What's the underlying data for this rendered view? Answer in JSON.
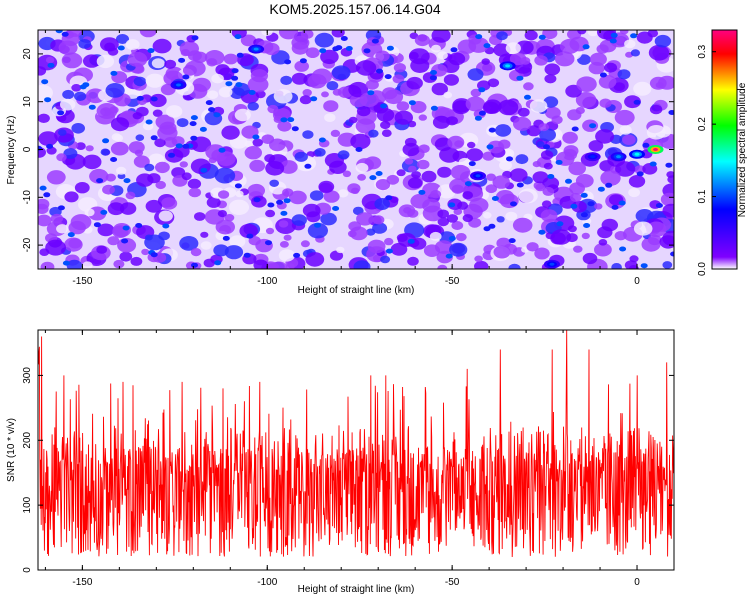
{
  "title": "KOM5.2025.157.06.14.G04",
  "chart_data": [
    {
      "type": "heatmap",
      "title": "KOM5.2025.157.06.14.G04",
      "xlabel": "Height of straight line (km)",
      "ylabel": "Frequency (Hz)",
      "xlim": [
        -162,
        10
      ],
      "ylim": [
        -25,
        25
      ],
      "xticks": [
        -150,
        -100,
        -50,
        0
      ],
      "yticks": [
        -20,
        -10,
        0,
        10,
        20
      ],
      "colorbar": {
        "label": "Normalized spectral amplitude",
        "range": [
          0.0,
          0.33
        ],
        "ticks": [
          0.0,
          0.1,
          0.2,
          0.3
        ],
        "colormap": [
          "#ffffff",
          "#7f00ff",
          "#0000ff",
          "#00ffff",
          "#00ff00",
          "#ffff00",
          "#ff0000",
          "#ff0080"
        ]
      },
      "hotspots": [
        {
          "x": 5,
          "y": 0.0,
          "value": 0.33
        },
        {
          "x": 0,
          "y": -1.0,
          "value": 0.15
        },
        {
          "x": -5,
          "y": -1.5,
          "value": 0.12
        },
        {
          "x": -12,
          "y": -1.5,
          "value": 0.09
        },
        {
          "x": -35,
          "y": 17.5,
          "value": 0.14
        },
        {
          "x": -103,
          "y": 21.0,
          "value": 0.12
        },
        {
          "x": -124,
          "y": 13.5,
          "value": 0.11
        },
        {
          "x": -23,
          "y": -24.0,
          "value": 0.1
        },
        {
          "x": -43,
          "y": -5.5,
          "value": 0.1
        }
      ]
    },
    {
      "type": "line",
      "xlabel": "Height of straight line (km)",
      "ylabel": "SNR (10 * v/v)",
      "xlim": [
        -162,
        10
      ],
      "ylim": [
        0,
        370
      ],
      "xticks": [
        -150,
        -100,
        -50,
        0
      ],
      "yticks": [
        0,
        100,
        200,
        300
      ],
      "series": [
        {
          "color": "#ff0000",
          "baseline": 110,
          "spikes": [
            {
              "x": -161,
              "y": 360
            },
            {
              "x": -155,
              "y": 300
            },
            {
              "x": -139,
              "y": 290
            },
            {
              "x": -123,
              "y": 290
            },
            {
              "x": -112,
              "y": 280
            },
            {
              "x": -102,
              "y": 290
            },
            {
              "x": -72,
              "y": 300
            },
            {
              "x": -68,
              "y": 300
            },
            {
              "x": -46,
              "y": 310
            },
            {
              "x": -37,
              "y": 340
            },
            {
              "x": -23,
              "y": 340
            },
            {
              "x": -19,
              "y": 370
            },
            {
              "x": -13,
              "y": 340
            },
            {
              "x": 0,
              "y": 300
            },
            {
              "x": 8,
              "y": 320
            }
          ]
        }
      ]
    }
  ]
}
